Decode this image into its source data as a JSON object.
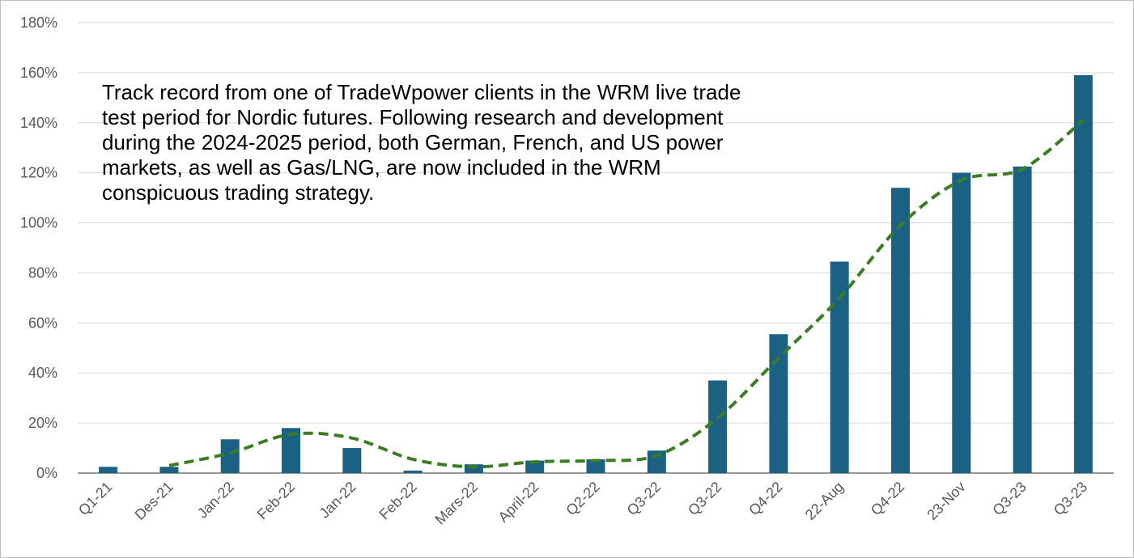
{
  "chart_data": {
    "type": "bar",
    "categories": [
      "Q1-21",
      "Des-21",
      "Jan-22",
      "Feb-22",
      "Jan-22",
      "Feb-22",
      "Mars-22",
      "April-22",
      "Q2-22",
      "Q3-22",
      "Q3-22",
      "Q4-22",
      "22-Aug",
      "Q4-22",
      "23-Nov",
      "Q3-23",
      "Q3-23"
    ],
    "values": [
      2.5,
      2.5,
      13.5,
      18,
      10,
      1,
      3.5,
      5,
      5.5,
      9,
      37,
      55.5,
      84.5,
      114,
      120,
      122.5,
      159
    ],
    "trendline": {
      "style": "dashed",
      "values": [
        null,
        3,
        8,
        15.5,
        14,
        5.5,
        2.5,
        4.5,
        5,
        7,
        22,
        46,
        70,
        99,
        117,
        121.5,
        141
      ]
    },
    "ylim": [
      0,
      180
    ],
    "yticks": [
      "0%",
      "20%",
      "40%",
      "60%",
      "80%",
      "100%",
      "120%",
      "140%",
      "160%",
      "180%"
    ],
    "grid": true,
    "legend": "none",
    "colors": {
      "bar": "#1b6184",
      "trend": "#3a7d23",
      "grid": "#d9d9d9",
      "axis": "#595959"
    },
    "annotation": [
      "Track record from one of TradeWpower clients in the WRM live trade",
      "test period for Nordic futures. Following research and development",
      "during the 2024-2025 period, both German, French, and US power",
      "markets, as well as Gas/LNG, are now included in the WRM",
      "conspicuous trading strategy."
    ]
  }
}
